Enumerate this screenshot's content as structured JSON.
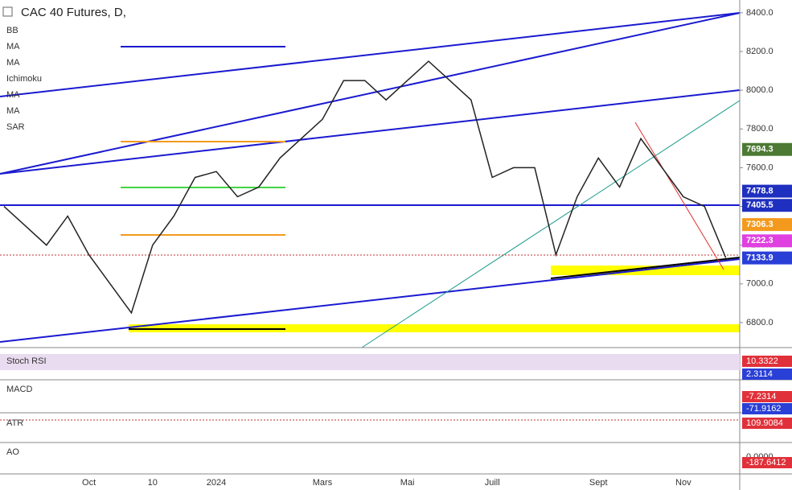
{
  "chart_data": {
    "type": "line",
    "title": "CAC 40 Futures, D,",
    "indicators": [
      "BB",
      "MA",
      "MA",
      "Ichimoku",
      "MA",
      "MA",
      "SAR"
    ],
    "categories": [
      null,
      null,
      null,
      null,
      "Oct",
      null,
      null,
      "10",
      null,
      null,
      "2024",
      null,
      null,
      null,
      null,
      "Mars",
      null,
      null,
      null,
      "Mai",
      null,
      null,
      null,
      "Juill",
      null,
      null,
      null,
      null,
      "Sept",
      null,
      null,
      null,
      "Nov",
      null,
      null
    ],
    "values": [
      7400,
      7300,
      7200,
      7350,
      7150,
      7000,
      6850,
      7200,
      7350,
      7550,
      7580,
      7450,
      7500,
      7650,
      7750,
      7850,
      8050,
      8050,
      7950,
      8050,
      8150,
      8050,
      7950,
      7550,
      7600,
      7600,
      7150,
      7450,
      7650,
      7500,
      7750,
      7600,
      7450,
      7400,
      7135
    ],
    "color": "#222222",
    "ylim": [
      6671,
      8466
    ],
    "yticks": [
      {
        "value": 6800,
        "label": "6800.0"
      },
      {
        "value": 7000,
        "label": "7000.0"
      },
      {
        "value": 7200,
        "label": "7200.0"
      },
      {
        "value": 7400,
        "label": "7400.0"
      },
      {
        "value": 7600,
        "label": "7600.0"
      },
      {
        "value": 7800,
        "label": "7800.0"
      },
      {
        "value": 8000,
        "label": "8000.0"
      },
      {
        "value": 8200,
        "label": "8200.0"
      },
      {
        "value": 8400,
        "label": "8400.0"
      }
    ],
    "price_tags": [
      {
        "value": 7694.3,
        "label": "7694.3",
        "color": "#4c7a34"
      },
      {
        "value": 7478.8,
        "label": "7478.8",
        "color": "#1f2fbf"
      },
      {
        "value": 7405.5,
        "label": "7405.5",
        "color": "#1f2fbf"
      },
      {
        "value": 7306.3,
        "label": "7306.3",
        "color": "#f39a1e"
      },
      {
        "value": 7222.3,
        "label": "7222.3",
        "color": "#e040e0"
      },
      {
        "value": 7133.9,
        "label": "7133.9",
        "color": "#2a3fd6"
      }
    ],
    "panes": [
      {
        "name": "Stoch RSI",
        "values": [
          "10.3322",
          "2.3114"
        ],
        "colors": [
          "#e0313a",
          "#2a3fd6"
        ]
      },
      {
        "name": "MACD",
        "values": [
          "-7.2314",
          "-71.9162"
        ],
        "colors": [
          "#e0313a",
          "#2a3fd6"
        ]
      },
      {
        "name": "ATR",
        "values": [
          "109.9084"
        ],
        "colors": [
          "#e0313a"
        ]
      },
      {
        "name": "AO",
        "values": [
          "0.0000",
          "-187.6412"
        ],
        "colors": [
          "#ffffff",
          "#e0313a"
        ]
      }
    ]
  }
}
